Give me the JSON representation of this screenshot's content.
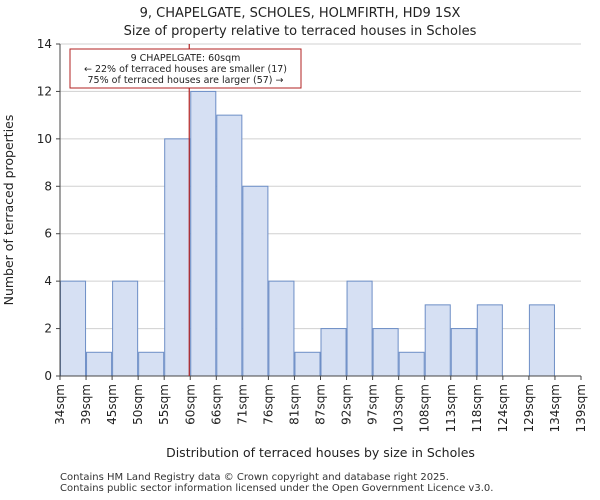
{
  "chart_data": {
    "type": "bar",
    "title": "9, CHAPELGATE, SCHOLES, HOLMFIRTH, HD9 1SX",
    "subtitle": "Size of property relative to terraced houses in Scholes",
    "xlabel": "Distribution of terraced houses by size in Scholes",
    "ylabel": "Number of terraced properties",
    "tick_labels": [
      "34sqm",
      "39sqm",
      "45sqm",
      "50sqm",
      "55sqm",
      "60sqm",
      "66sqm",
      "71sqm",
      "76sqm",
      "81sqm",
      "87sqm",
      "92sqm",
      "97sqm",
      "103sqm",
      "108sqm",
      "113sqm",
      "118sqm",
      "124sqm",
      "129sqm",
      "134sqm",
      "139sqm"
    ],
    "values": [
      4,
      1,
      4,
      1,
      10,
      12,
      11,
      8,
      4,
      1,
      2,
      4,
      2,
      1,
      3,
      2,
      3,
      0,
      3,
      0
    ],
    "ylim": [
      0,
      14
    ],
    "yticks": [
      0,
      2,
      4,
      6,
      8,
      10,
      12,
      14
    ],
    "marker": {
      "position_bin": 5,
      "lines": [
        "9 CHAPELGATE: 60sqm",
        "← 22% of terraced houses are smaller (17)",
        "75% of terraced houses are larger (57) →"
      ]
    },
    "bar_color": "#d6e0f3",
    "bar_edge": "#6d8ec6",
    "marker_color": "#b22222"
  },
  "footer": {
    "line1": "Contains HM Land Registry data © Crown copyright and database right 2025.",
    "line2": "Contains public sector information licensed under the Open Government Licence v3.0."
  }
}
